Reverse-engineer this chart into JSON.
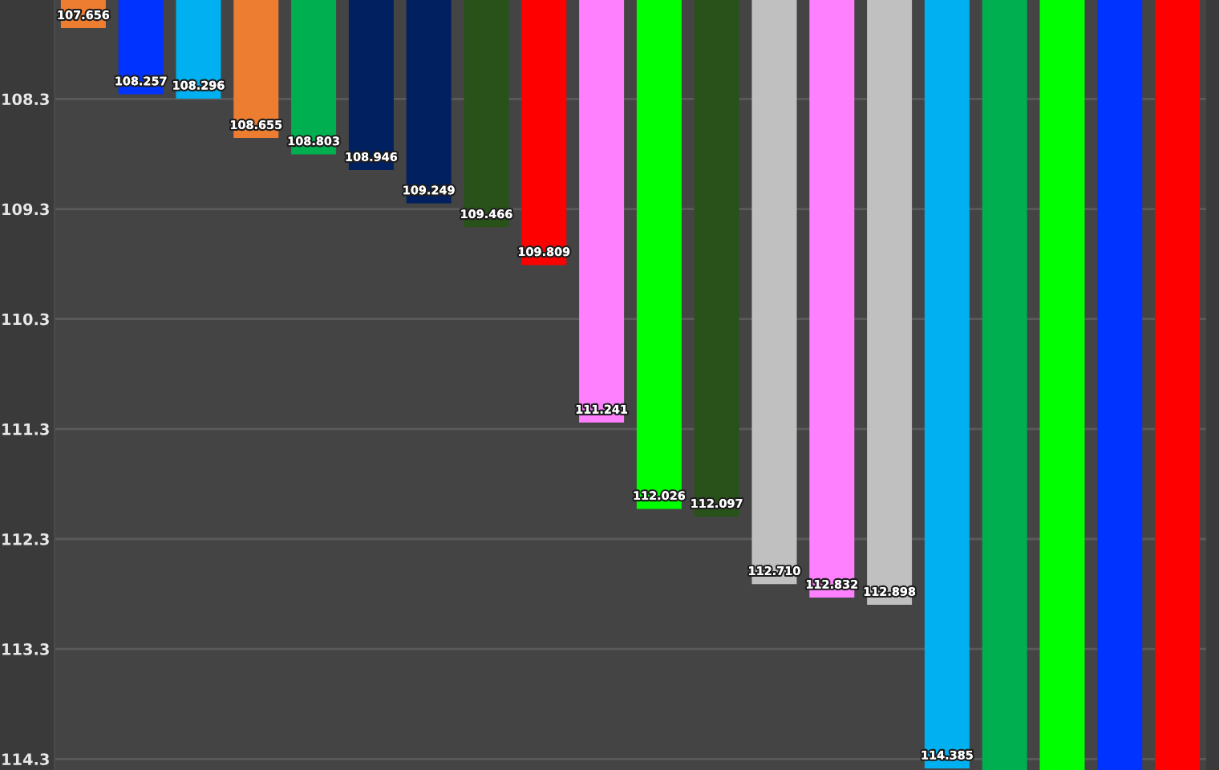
{
  "chart_data": {
    "type": "bar",
    "categories": [
      null,
      null,
      null,
      null,
      null,
      null,
      null,
      null,
      null,
      null,
      null,
      null,
      null,
      null,
      null,
      null,
      null,
      null,
      null,
      null
    ],
    "values": [
      107.656,
      108.257,
      108.296,
      108.655,
      108.803,
      108.946,
      109.249,
      109.466,
      109.809,
      111.241,
      112.026,
      112.097,
      112.71,
      112.832,
      112.898,
      114.385,
      114.4,
      114.4,
      114.4,
      114.4
    ],
    "value_labels": [
      "107.656",
      "108.257",
      "108.296",
      "108.655",
      "108.803",
      "108.946",
      "109.249",
      "109.466",
      "109.809",
      "111.241",
      "112.026",
      "112.097",
      "112.710",
      "112.832",
      "112.898",
      "114.385",
      null,
      null,
      null,
      null
    ],
    "colors": [
      "#ed7d31",
      "#0033ff",
      "#00b0f0",
      "#ed7d31",
      "#00b050",
      "#002060",
      "#002060",
      "#285219",
      "#ff0000",
      "#ff80ff",
      "#00ff00",
      "#285219",
      "#c0c0c0",
      "#ff80ff",
      "#c0c0c0",
      "#00b0f0",
      "#00b050",
      "#00ff00",
      "#0033ff",
      "#ff0000"
    ],
    "ylim": [
      114.4,
      107.4
    ],
    "yticks": [
      108.3,
      109.3,
      110.3,
      111.3,
      112.3,
      113.3,
      114.3
    ],
    "grid": "y",
    "tick_labels": "y"
  }
}
